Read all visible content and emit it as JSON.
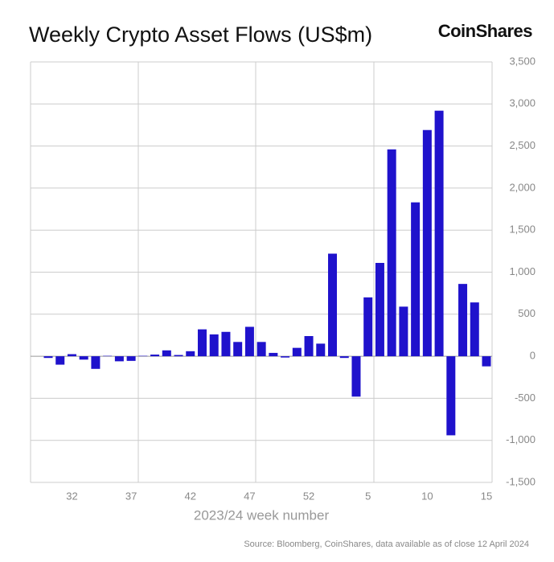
{
  "chart_data": {
    "type": "bar",
    "title": "Weekly Crypto Asset Flows (US$m)",
    "brand": "CoinShares",
    "x_label": "2023/24 week number",
    "source": "Source: Bloomberg, CoinShares, data available as of close 12 April 2024",
    "categories": [
      null,
      null,
      "32",
      null,
      null,
      null,
      null,
      "37",
      null,
      null,
      null,
      null,
      "42",
      null,
      null,
      null,
      null,
      "47",
      null,
      null,
      null,
      null,
      "52",
      null,
      null,
      null,
      null,
      "5",
      null,
      null,
      null,
      null,
      "10",
      null,
      null,
      null,
      null,
      "15"
    ],
    "values": [
      -20,
      -100,
      25,
      -40,
      -150,
      5,
      -60,
      -55,
      5,
      20,
      70,
      15,
      60,
      320,
      260,
      290,
      170,
      350,
      170,
      40,
      -15,
      100,
      240,
      150,
      1220,
      -20,
      -480,
      700,
      1110,
      2460,
      590,
      1830,
      2690,
      2920,
      -940,
      860,
      640,
      -120
    ],
    "color": "#1f12cc",
    "ylim": [
      -1500,
      3500
    ],
    "yticks": [
      {
        "value": -1500,
        "label": "-1,500"
      },
      {
        "value": -1000,
        "label": "-1,000"
      },
      -500,
      0,
      500,
      {
        "value": 1000,
        "label": "1,000"
      },
      {
        "value": 1500,
        "label": "1,500"
      },
      {
        "value": 2000,
        "label": "2,000"
      },
      {
        "value": 2500,
        "label": "2,500"
      },
      {
        "value": 3000,
        "label": "3,000"
      },
      {
        "value": 3500,
        "label": "3,500"
      }
    ],
    "grid": true
  }
}
